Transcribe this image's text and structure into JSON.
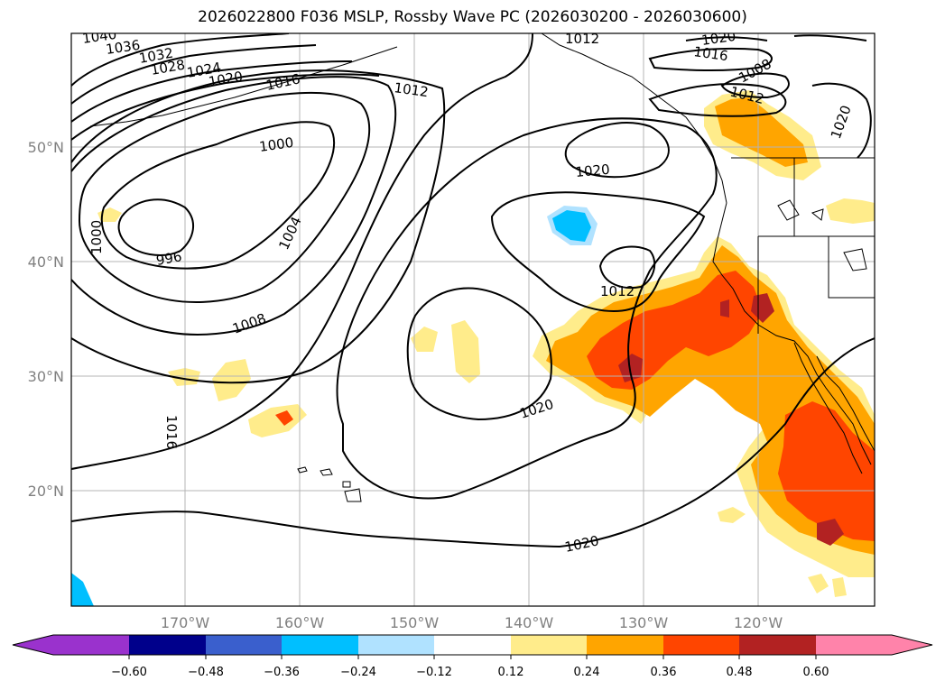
{
  "title": "2026022800 F036 MSLP, Rossby Wave PC (2026030200 - 2026030600)",
  "colors": {
    "neg_060": "#9a32cd",
    "neg_048": "#00008b",
    "neg_036": "#3a5fcd",
    "neg_024": "#00bfff",
    "neg_012": "#b0e2ff",
    "zero": "#ffffff",
    "pos_012": "#ffec8b",
    "pos_024": "#ffa500",
    "pos_036": "#ff4500",
    "pos_048": "#b22222",
    "pos_060": "#ff83aa",
    "contour": "#000000",
    "grid": "#b4b4b4",
    "coord_label": "#808080"
  },
  "map": {
    "lat_labels": [
      "50°N",
      "40°N",
      "30°N",
      "20°N"
    ],
    "lon_labels": [
      "170°W",
      "160°W",
      "150°W",
      "140°W",
      "130°W",
      "120°W"
    ],
    "contour_labels": [
      "1040",
      "1036",
      "1032",
      "1028",
      "1024",
      "1020",
      "1016",
      "1012",
      "1000",
      "1000",
      "996",
      "1004",
      "1008",
      "1020",
      "1012",
      "1020",
      "1016",
      "1020",
      "1012",
      "1008",
      "1020",
      "1016",
      "1012",
      "1020"
    ]
  },
  "colorbar": {
    "ticks": [
      "−0.60",
      "−0.48",
      "−0.36",
      "−0.24",
      "−0.12",
      "0.12",
      "0.24",
      "0.36",
      "0.48",
      "0.60"
    ]
  }
}
